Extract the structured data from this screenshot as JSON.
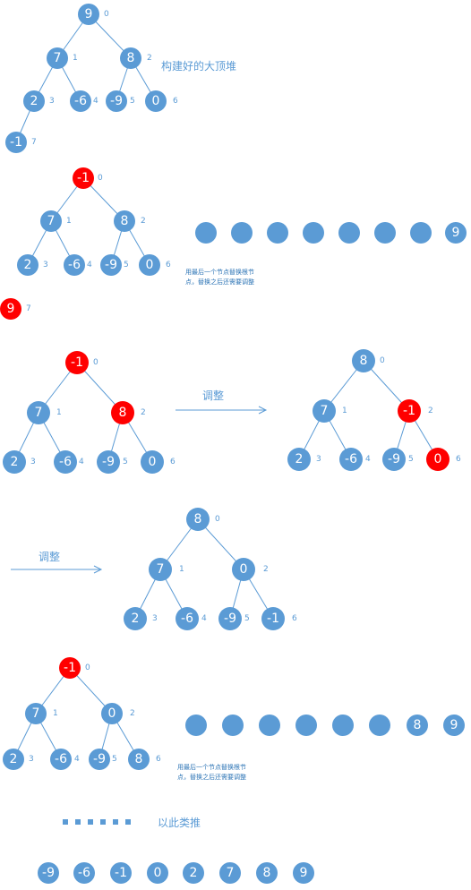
{
  "labels": {
    "built_heap": "构建好的大顶堆",
    "adjust": "调整",
    "note_line1": "用最后一个节点替换根节",
    "note_line2": "点，替换之后还需要调整",
    "and_so_on": "以此类推"
  },
  "colors": {
    "node": "#5b9bd5",
    "highlight": "#ff0000",
    "edge": "#5b9bd5",
    "text": "#ffffff"
  },
  "heap1": {
    "title": "构建好的大顶堆",
    "nodes": [
      {
        "value": "9",
        "index": "0",
        "color": "blue"
      },
      {
        "value": "7",
        "index": "1",
        "color": "blue"
      },
      {
        "value": "8",
        "index": "2",
        "color": "blue"
      },
      {
        "value": "2",
        "index": "3",
        "color": "blue"
      },
      {
        "value": "-6",
        "index": "4",
        "color": "blue"
      },
      {
        "value": "-9",
        "index": "5",
        "color": "blue"
      },
      {
        "value": "0",
        "index": "6",
        "color": "blue"
      },
      {
        "value": "-1",
        "index": "7",
        "color": "blue"
      }
    ]
  },
  "heap2": {
    "nodes": [
      {
        "value": "-1",
        "index": "0",
        "color": "red"
      },
      {
        "value": "7",
        "index": "1",
        "color": "blue"
      },
      {
        "value": "8",
        "index": "2",
        "color": "blue"
      },
      {
        "value": "2",
        "index": "3",
        "color": "blue"
      },
      {
        "value": "-6",
        "index": "4",
        "color": "blue"
      },
      {
        "value": "-9",
        "index": "5",
        "color": "blue"
      },
      {
        "value": "0",
        "index": "6",
        "color": "blue"
      },
      {
        "value": "9",
        "index": "7",
        "color": "red"
      }
    ],
    "array": [
      "",
      "",
      "",
      "",
      "",
      "",
      "",
      "9"
    ]
  },
  "heap3a": {
    "nodes": [
      {
        "value": "-1",
        "index": "0",
        "color": "red"
      },
      {
        "value": "7",
        "index": "1",
        "color": "blue"
      },
      {
        "value": "8",
        "index": "2",
        "color": "red"
      },
      {
        "value": "2",
        "index": "3",
        "color": "blue"
      },
      {
        "value": "-6",
        "index": "4",
        "color": "blue"
      },
      {
        "value": "-9",
        "index": "5",
        "color": "blue"
      },
      {
        "value": "0",
        "index": "6",
        "color": "blue"
      }
    ]
  },
  "heap3b": {
    "nodes": [
      {
        "value": "8",
        "index": "0",
        "color": "blue"
      },
      {
        "value": "7",
        "index": "1",
        "color": "blue"
      },
      {
        "value": "-1",
        "index": "2",
        "color": "red"
      },
      {
        "value": "2",
        "index": "3",
        "color": "blue"
      },
      {
        "value": "-6",
        "index": "4",
        "color": "blue"
      },
      {
        "value": "-9",
        "index": "5",
        "color": "blue"
      },
      {
        "value": "0",
        "index": "6",
        "color": "red"
      }
    ]
  },
  "heap4": {
    "nodes": [
      {
        "value": "8",
        "index": "0",
        "color": "blue"
      },
      {
        "value": "7",
        "index": "1",
        "color": "blue"
      },
      {
        "value": "0",
        "index": "2",
        "color": "blue"
      },
      {
        "value": "2",
        "index": "3",
        "color": "blue"
      },
      {
        "value": "-6",
        "index": "4",
        "color": "blue"
      },
      {
        "value": "-9",
        "index": "5",
        "color": "blue"
      },
      {
        "value": "-1",
        "index": "6",
        "color": "blue"
      }
    ]
  },
  "heap5": {
    "nodes": [
      {
        "value": "-1",
        "index": "0",
        "color": "red"
      },
      {
        "value": "7",
        "index": "1",
        "color": "blue"
      },
      {
        "value": "0",
        "index": "2",
        "color": "blue"
      },
      {
        "value": "2",
        "index": "3",
        "color": "blue"
      },
      {
        "value": "-6",
        "index": "4",
        "color": "blue"
      },
      {
        "value": "-9",
        "index": "5",
        "color": "blue"
      },
      {
        "value": "8",
        "index": "6",
        "color": "blue"
      }
    ],
    "array": [
      "",
      "",
      "",
      "",
      "",
      "",
      "8",
      "9"
    ]
  },
  "sorted": [
    "-9",
    "-6",
    "-1",
    "0",
    "2",
    "7",
    "8",
    "9"
  ]
}
